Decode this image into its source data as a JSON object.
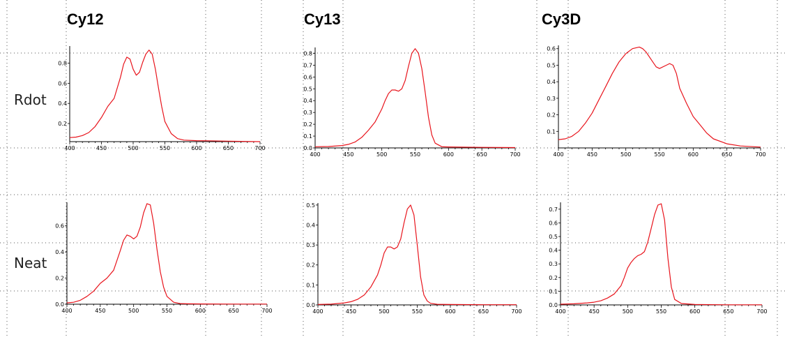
{
  "columns": [
    "Cy12",
    "Cy13",
    "Cy3D"
  ],
  "rows": [
    "Rdot",
    "Neat"
  ],
  "colors": {
    "curve": "#e8141c",
    "axis": "#000000",
    "grid_dots": "#555555"
  },
  "chart_data": [
    {
      "type": "line",
      "column": "Cy12",
      "row": "Rdot",
      "xlim": [
        400,
        700
      ],
      "ylim": [
        0.02,
        0.97
      ],
      "xticks": [
        400,
        450,
        500,
        550,
        600,
        650,
        700
      ],
      "xtick_labels": [
        "400",
        "450",
        "500",
        "550",
        "600",
        "650",
        "700"
      ],
      "yticks": [
        0.2,
        0.4,
        0.6,
        0.8
      ],
      "ytick_labels": [
        "0.2",
        "0.4",
        "0.6",
        "0.8"
      ],
      "series": [
        {
          "x": [
            400,
            410,
            420,
            430,
            440,
            450,
            460,
            470,
            480,
            485,
            490,
            495,
            500,
            505,
            510,
            515,
            520,
            525,
            530,
            535,
            540,
            545,
            550,
            560,
            570,
            580,
            600,
            620,
            650,
            700
          ],
          "y": [
            0.06,
            0.065,
            0.08,
            0.11,
            0.17,
            0.26,
            0.37,
            0.45,
            0.66,
            0.79,
            0.86,
            0.84,
            0.74,
            0.68,
            0.71,
            0.81,
            0.89,
            0.93,
            0.89,
            0.74,
            0.55,
            0.37,
            0.22,
            0.1,
            0.05,
            0.035,
            0.03,
            0.028,
            0.025,
            0.02
          ]
        }
      ]
    },
    {
      "type": "line",
      "column": "Cy13",
      "row": "Rdot",
      "xlim": [
        400,
        700
      ],
      "ylim": [
        0.0,
        0.85
      ],
      "xticks": [
        400,
        450,
        500,
        550,
        600,
        650,
        700
      ],
      "xtick_labels": [
        "400",
        "450",
        "500",
        "550",
        "600",
        "650",
        "700"
      ],
      "yticks": [
        0.0,
        0.1,
        0.2,
        0.3,
        0.4,
        0.5,
        0.6,
        0.7,
        0.8
      ],
      "ytick_labels": [
        "0.0",
        "0.1",
        "0.2",
        "0.3",
        "0.4",
        "0.5",
        "0.6",
        "0.7",
        "0.8"
      ],
      "series": [
        {
          "x": [
            400,
            420,
            440,
            450,
            460,
            470,
            480,
            490,
            500,
            505,
            510,
            515,
            520,
            525,
            530,
            535,
            540,
            545,
            550,
            555,
            560,
            565,
            570,
            575,
            580,
            590,
            600,
            650,
            700
          ],
          "y": [
            0.01,
            0.012,
            0.02,
            0.03,
            0.05,
            0.09,
            0.15,
            0.22,
            0.33,
            0.4,
            0.46,
            0.49,
            0.49,
            0.48,
            0.5,
            0.57,
            0.69,
            0.8,
            0.84,
            0.8,
            0.67,
            0.47,
            0.26,
            0.11,
            0.04,
            0.01,
            0.008,
            0.005,
            0.003
          ]
        }
      ]
    },
    {
      "type": "line",
      "column": "Cy3D",
      "row": "Rdot",
      "xlim": [
        400,
        700
      ],
      "ylim": [
        0.0,
        0.62
      ],
      "xticks": [
        400,
        450,
        500,
        550,
        600,
        650,
        700
      ],
      "xtick_labels": [
        "400",
        "450",
        "500",
        "550",
        "600",
        "650",
        "700"
      ],
      "yticks": [
        0.1,
        0.2,
        0.3,
        0.4,
        0.5,
        0.6
      ],
      "ytick_labels": [
        "0.1",
        "0.2",
        "0.3",
        "0.4",
        "0.5",
        "0.6"
      ],
      "series": [
        {
          "x": [
            400,
            410,
            420,
            430,
            440,
            450,
            460,
            470,
            480,
            490,
            500,
            510,
            520,
            525,
            530,
            540,
            545,
            550,
            560,
            565,
            570,
            575,
            580,
            590,
            600,
            610,
            620,
            630,
            650,
            670,
            700
          ],
          "y": [
            0.05,
            0.055,
            0.07,
            0.1,
            0.15,
            0.21,
            0.29,
            0.37,
            0.45,
            0.52,
            0.57,
            0.6,
            0.61,
            0.6,
            0.58,
            0.52,
            0.49,
            0.48,
            0.5,
            0.51,
            0.5,
            0.45,
            0.36,
            0.27,
            0.19,
            0.14,
            0.09,
            0.055,
            0.025,
            0.012,
            0.005
          ]
        }
      ]
    },
    {
      "type": "line",
      "column": "Cy12",
      "row": "Neat",
      "xlim": [
        400,
        700
      ],
      "ylim": [
        0.0,
        0.78
      ],
      "xticks": [
        400,
        450,
        500,
        550,
        600,
        650,
        700
      ],
      "xtick_labels": [
        "400",
        "450",
        "500",
        "550",
        "600",
        "650",
        "700"
      ],
      "yticks": [
        0.0,
        0.2,
        0.4,
        0.6
      ],
      "ytick_labels": [
        "0.0",
        "0.2",
        "0.4",
        "0.6"
      ],
      "series": [
        {
          "x": [
            400,
            410,
            420,
            430,
            440,
            450,
            460,
            470,
            480,
            485,
            490,
            495,
            500,
            505,
            510,
            515,
            520,
            525,
            530,
            535,
            540,
            545,
            550,
            560,
            570,
            580,
            600,
            650,
            700
          ],
          "y": [
            0.01,
            0.015,
            0.03,
            0.06,
            0.1,
            0.16,
            0.2,
            0.26,
            0.41,
            0.49,
            0.53,
            0.52,
            0.5,
            0.52,
            0.59,
            0.7,
            0.77,
            0.76,
            0.62,
            0.42,
            0.25,
            0.13,
            0.06,
            0.015,
            0.005,
            0.003,
            0.002,
            0.001,
            0.001
          ]
        }
      ]
    },
    {
      "type": "line",
      "column": "Cy13",
      "row": "Neat",
      "xlim": [
        400,
        700
      ],
      "ylim": [
        0.0,
        0.51
      ],
      "xticks": [
        400,
        450,
        500,
        550,
        600,
        650,
        700
      ],
      "xtick_labels": [
        "400",
        "450",
        "500",
        "550",
        "600",
        "650",
        "700"
      ],
      "yticks": [
        0.0,
        0.1,
        0.2,
        0.3,
        0.4,
        0.5
      ],
      "ytick_labels": [
        "0.0",
        "0.1",
        "0.2",
        "0.3",
        "0.4",
        "0.5"
      ],
      "series": [
        {
          "x": [
            400,
            420,
            440,
            450,
            460,
            470,
            480,
            490,
            495,
            500,
            505,
            510,
            515,
            520,
            525,
            530,
            535,
            540,
            545,
            550,
            555,
            560,
            565,
            570,
            580,
            600,
            650,
            700
          ],
          "y": [
            0.002,
            0.004,
            0.01,
            0.016,
            0.028,
            0.05,
            0.09,
            0.15,
            0.2,
            0.26,
            0.29,
            0.29,
            0.28,
            0.29,
            0.33,
            0.41,
            0.48,
            0.5,
            0.45,
            0.3,
            0.14,
            0.05,
            0.02,
            0.008,
            0.003,
            0.002,
            0.001,
            0.001
          ]
        }
      ]
    },
    {
      "type": "line",
      "column": "Cy3D",
      "row": "Neat",
      "xlim": [
        400,
        700
      ],
      "ylim": [
        0.0,
        0.75
      ],
      "xticks": [
        400,
        450,
        500,
        550,
        600,
        650,
        700
      ],
      "xtick_labels": [
        "400",
        "450",
        "500",
        "550",
        "600",
        "650",
        "700"
      ],
      "yticks": [
        0.0,
        0.1,
        0.2,
        0.3,
        0.4,
        0.5,
        0.6,
        0.7
      ],
      "ytick_labels": [
        "0.0",
        "0.1",
        "0.2",
        "0.3",
        "0.4",
        "0.5",
        "0.6",
        "0.7"
      ],
      "series": [
        {
          "x": [
            400,
            420,
            440,
            450,
            460,
            470,
            480,
            490,
            495,
            500,
            505,
            510,
            515,
            520,
            525,
            530,
            535,
            540,
            545,
            550,
            555,
            560,
            565,
            570,
            580,
            600,
            650,
            700
          ],
          "y": [
            0.005,
            0.008,
            0.015,
            0.02,
            0.03,
            0.05,
            0.08,
            0.14,
            0.2,
            0.27,
            0.31,
            0.34,
            0.36,
            0.37,
            0.39,
            0.46,
            0.56,
            0.66,
            0.73,
            0.74,
            0.62,
            0.34,
            0.13,
            0.04,
            0.01,
            0.003,
            0.001,
            0.001
          ]
        }
      ]
    }
  ]
}
